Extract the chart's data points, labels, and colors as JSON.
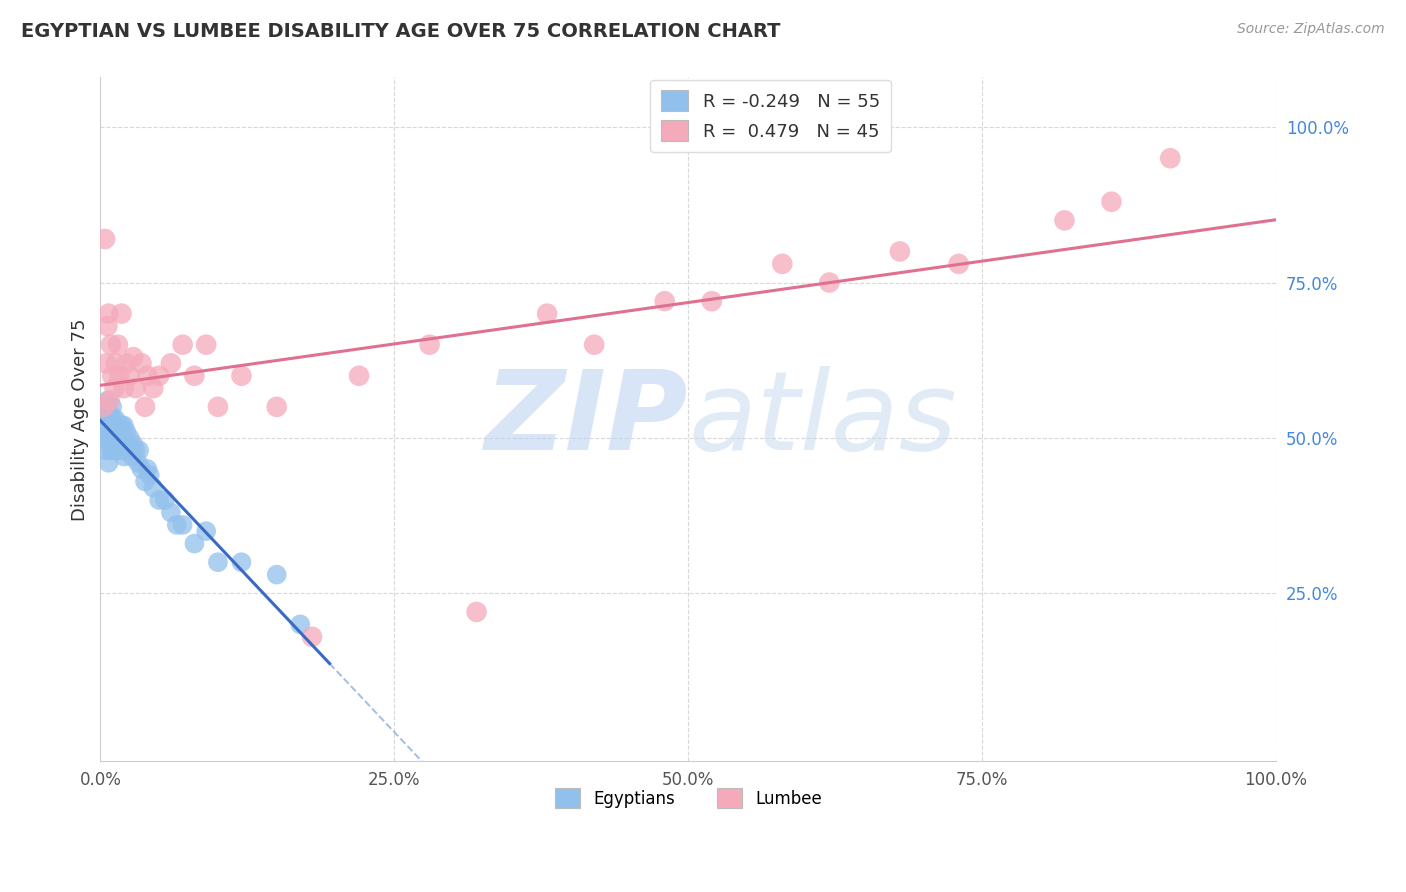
{
  "title": "EGYPTIAN VS LUMBEE DISABILITY AGE OVER 75 CORRELATION CHART",
  "source_text": "Source: ZipAtlas.com",
  "ylabel": "Disability Age Over 75",
  "xlim": [
    0,
    1
  ],
  "ylim": [
    -0.02,
    1.08
  ],
  "xtick_labels": [
    "0.0%",
    "25.0%",
    "50.0%",
    "75.0%",
    "100.0%"
  ],
  "xtick_vals": [
    0,
    0.25,
    0.5,
    0.75,
    1.0
  ],
  "ytick_labels": [
    "25.0%",
    "50.0%",
    "75.0%",
    "100.0%"
  ],
  "ytick_vals": [
    0.25,
    0.5,
    0.75,
    1.0
  ],
  "blue_R": -0.249,
  "blue_N": 55,
  "pink_R": 0.479,
  "pink_N": 45,
  "blue_color": "#92C0EC",
  "pink_color": "#F4AABA",
  "blue_line_color": "#3B6AC4",
  "pink_line_color": "#E07090",
  "grid_color": "#D8D8D8",
  "background_color": "#FFFFFF",
  "watermark_zip_color": "#BDD5F0",
  "watermark_atlas_color": "#C8DCF0",
  "legend_label_blue": "Egyptians",
  "legend_label_pink": "Lumbee",
  "blue_x": [
    0.003,
    0.004,
    0.005,
    0.005,
    0.006,
    0.006,
    0.007,
    0.007,
    0.008,
    0.008,
    0.009,
    0.009,
    0.01,
    0.01,
    0.011,
    0.011,
    0.012,
    0.013,
    0.014,
    0.015,
    0.015,
    0.016,
    0.016,
    0.017,
    0.018,
    0.018,
    0.019,
    0.02,
    0.02,
    0.021,
    0.022,
    0.023,
    0.025,
    0.026,
    0.027,
    0.028,
    0.03,
    0.032,
    0.033,
    0.035,
    0.038,
    0.04,
    0.042,
    0.045,
    0.05,
    0.055,
    0.06,
    0.065,
    0.07,
    0.08,
    0.09,
    0.1,
    0.12,
    0.15,
    0.17
  ],
  "blue_y": [
    0.5,
    0.52,
    0.54,
    0.48,
    0.56,
    0.5,
    0.52,
    0.46,
    0.54,
    0.5,
    0.52,
    0.48,
    0.55,
    0.5,
    0.53,
    0.48,
    0.51,
    0.53,
    0.5,
    0.52,
    0.49,
    0.51,
    0.48,
    0.5,
    0.52,
    0.48,
    0.5,
    0.52,
    0.47,
    0.49,
    0.51,
    0.49,
    0.5,
    0.48,
    0.47,
    0.49,
    0.48,
    0.46,
    0.48,
    0.45,
    0.43,
    0.45,
    0.44,
    0.42,
    0.4,
    0.4,
    0.38,
    0.36,
    0.36,
    0.33,
    0.35,
    0.3,
    0.3,
    0.28,
    0.2
  ],
  "pink_x": [
    0.003,
    0.004,
    0.005,
    0.006,
    0.007,
    0.008,
    0.009,
    0.01,
    0.012,
    0.013,
    0.015,
    0.016,
    0.018,
    0.02,
    0.022,
    0.025,
    0.028,
    0.03,
    0.035,
    0.038,
    0.04,
    0.045,
    0.05,
    0.06,
    0.07,
    0.08,
    0.09,
    0.1,
    0.12,
    0.15,
    0.18,
    0.22,
    0.28,
    0.32,
    0.38,
    0.42,
    0.48,
    0.52,
    0.58,
    0.62,
    0.68,
    0.73,
    0.82,
    0.86,
    0.91
  ],
  "pink_y": [
    0.55,
    0.82,
    0.62,
    0.68,
    0.7,
    0.56,
    0.65,
    0.6,
    0.58,
    0.62,
    0.65,
    0.6,
    0.7,
    0.58,
    0.62,
    0.6,
    0.63,
    0.58,
    0.62,
    0.55,
    0.6,
    0.58,
    0.6,
    0.62,
    0.65,
    0.6,
    0.65,
    0.55,
    0.6,
    0.55,
    0.18,
    0.6,
    0.65,
    0.22,
    0.7,
    0.65,
    0.72,
    0.72,
    0.78,
    0.75,
    0.8,
    0.78,
    0.85,
    0.88,
    0.95
  ]
}
